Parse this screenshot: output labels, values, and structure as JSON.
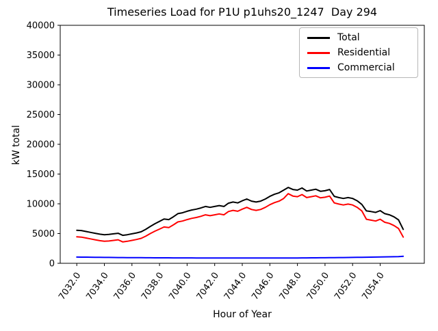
{
  "chart_data": {
    "type": "line",
    "title": "Timeseries Load for P1U p1uhs20_1247  Day 294",
    "xlabel": "Hour of Year",
    "ylabel": "kW total",
    "xlim": [
      7030.8,
      7057.2
    ],
    "ylim": [
      0,
      40000
    ],
    "grid": false,
    "legend": {
      "position": "upper right",
      "entries": [
        {
          "label": "Total",
          "color": "#000000"
        },
        {
          "label": "Residential",
          "color": "#ff0000"
        },
        {
          "label": "Commercial",
          "color": "#0000ff"
        }
      ]
    },
    "x_ticks": [
      7032,
      7034,
      7036,
      7038,
      7040,
      7042,
      7044,
      7046,
      7048,
      7050,
      7052,
      7054
    ],
    "x_ticklabels": [
      "7032.0",
      "7034.0",
      "7036.0",
      "7038.0",
      "7040.0",
      "7042.0",
      "7044.0",
      "7046.0",
      "7048.0",
      "7050.0",
      "7052.0",
      "7054.0"
    ],
    "y_ticks": [
      0,
      5000,
      10000,
      15000,
      20000,
      25000,
      30000,
      35000,
      40000
    ],
    "x": [
      7032.0,
      7032.33,
      7032.67,
      7033.0,
      7033.33,
      7033.67,
      7034.0,
      7034.33,
      7034.67,
      7035.0,
      7035.33,
      7035.67,
      7036.0,
      7036.33,
      7036.67,
      7037.0,
      7037.33,
      7037.67,
      7038.0,
      7038.33,
      7038.67,
      7039.0,
      7039.33,
      7039.67,
      7040.0,
      7040.33,
      7040.67,
      7041.0,
      7041.33,
      7041.67,
      7042.0,
      7042.33,
      7042.67,
      7043.0,
      7043.33,
      7043.67,
      7044.0,
      7044.33,
      7044.67,
      7045.0,
      7045.33,
      7045.67,
      7046.0,
      7046.33,
      7046.67,
      7047.0,
      7047.33,
      7047.67,
      7048.0,
      7048.33,
      7048.67,
      7049.0,
      7049.33,
      7049.67,
      7050.0,
      7050.33,
      7050.67,
      7051.0,
      7051.33,
      7051.67,
      7052.0,
      7052.33,
      7052.67,
      7053.0,
      7053.33,
      7053.67,
      7054.0,
      7054.33,
      7054.67,
      7055.0,
      7055.33,
      7055.67
    ],
    "series": [
      {
        "name": "Total",
        "color": "#000000",
        "values": [
          5550,
          5500,
          5350,
          5200,
          5050,
          4900,
          4800,
          4850,
          4950,
          5050,
          4700,
          4800,
          4950,
          5100,
          5300,
          5700,
          6200,
          6650,
          7050,
          7450,
          7350,
          7800,
          8350,
          8500,
          8750,
          8950,
          9100,
          9300,
          9550,
          9400,
          9550,
          9700,
          9550,
          10100,
          10300,
          10150,
          10500,
          10800,
          10450,
          10300,
          10450,
          10800,
          11250,
          11600,
          11850,
          12300,
          12750,
          12400,
          12300,
          12650,
          12150,
          12300,
          12450,
          12100,
          12200,
          12400,
          11250,
          11050,
          10900,
          11050,
          10900,
          10500,
          9900,
          8800,
          8700,
          8550,
          8850,
          8350,
          8150,
          7800,
          7300,
          5700
        ]
      },
      {
        "name": "Residential",
        "color": "#ff0000",
        "values": [
          4450,
          4400,
          4250,
          4100,
          3950,
          3800,
          3700,
          3750,
          3850,
          3950,
          3600,
          3700,
          3850,
          4000,
          4200,
          4550,
          5000,
          5400,
          5750,
          6100,
          6000,
          6450,
          6950,
          7100,
          7350,
          7550,
          7700,
          7900,
          8150,
          8000,
          8150,
          8300,
          8150,
          8700,
          8900,
          8750,
          9100,
          9400,
          9050,
          8900,
          9050,
          9400,
          9850,
          10200,
          10450,
          10900,
          11700,
          11300,
          11200,
          11550,
          11050,
          11200,
          11350,
          11000,
          11100,
          11300,
          10150,
          9950,
          9800,
          9950,
          9800,
          9400,
          8800,
          7400,
          7250,
          7100,
          7400,
          6900,
          6700,
          6350,
          5850,
          4400
        ]
      },
      {
        "name": "Commercial",
        "color": "#0000ff",
        "values": [
          1050,
          1040,
          1030,
          1020,
          1010,
          1000,
          990,
          985,
          980,
          970,
          960,
          955,
          950,
          945,
          940,
          935,
          930,
          925,
          920,
          918,
          915,
          912,
          910,
          908,
          905,
          903,
          900,
          898,
          896,
          895,
          893,
          892,
          890,
          890,
          889,
          888,
          888,
          887,
          887,
          886,
          886,
          885,
          885,
          886,
          888,
          890,
          893,
          896,
          900,
          905,
          910,
          916,
          922,
          929,
          936,
          944,
          952,
          961,
          970,
          980,
          990,
          1001,
          1012,
          1024,
          1036,
          1049,
          1062,
          1076,
          1090,
          1105,
          1120,
          1180
        ]
      }
    ]
  }
}
